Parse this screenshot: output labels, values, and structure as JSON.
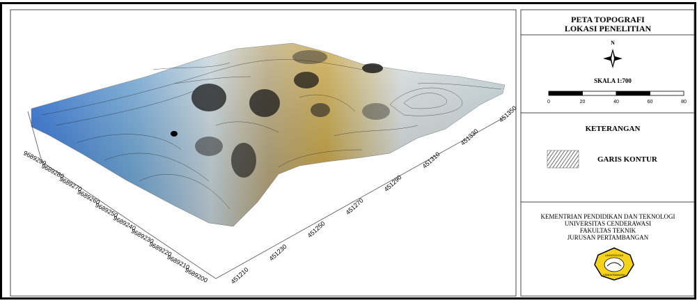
{
  "map": {
    "y_axis_labels": [
      "9689290",
      "9689280",
      "9689270",
      "9689260",
      "9689250",
      "9689240",
      "9689230",
      "9689220",
      "9689210",
      "9689200"
    ],
    "x_axis_labels": [
      "451210",
      "451230",
      "451250",
      "451270",
      "451290",
      "451310",
      "451330",
      "451350"
    ]
  },
  "legend": {
    "title": [
      "PETA TOPOGRAFI",
      "LOKASI PENELITIAN"
    ],
    "north": "N",
    "scale_title": "SKALA 1:700",
    "scale_labels": [
      "0",
      "20",
      "40",
      "60",
      "80"
    ],
    "keterangan": "KETERANGAN",
    "contour_label": "GARIS KONTUR",
    "institution": [
      "KEMENTRIAN PENDIDIKAN DAN TEKNOLOGI",
      "UNIVERSITAS CENDERAWASI",
      "FAKULTAS TEKNIK",
      "JURUSAN PERTAMBANGAN"
    ],
    "logo_text": [
      "UNIVERSITAS",
      "CENDERAWASIH"
    ]
  }
}
